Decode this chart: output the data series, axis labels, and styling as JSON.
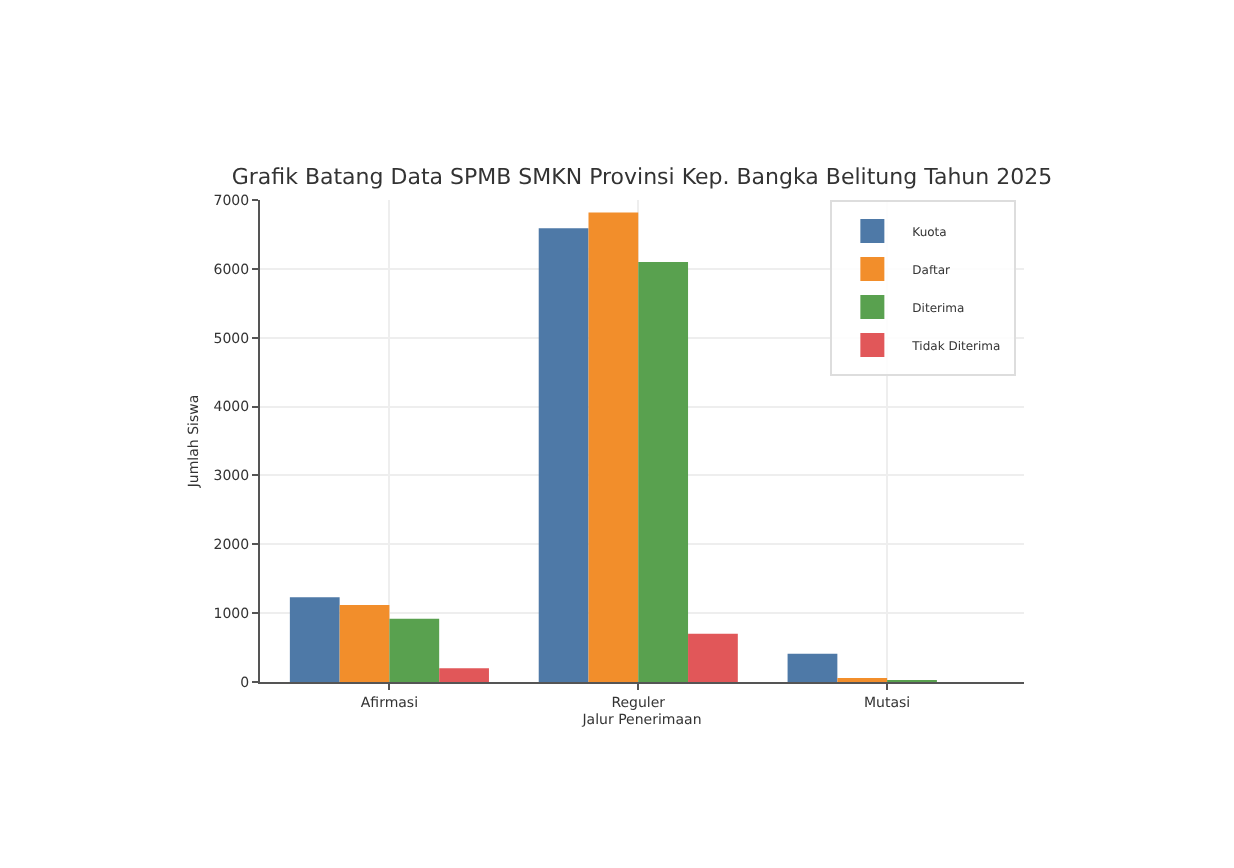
{
  "chart_data": {
    "type": "bar",
    "title": "Grafik Batang Data SPMB SMKN Provinsi Kep. Bangka Belitung Tahun 2025",
    "xlabel": "Jalur Penerimaan",
    "ylabel": "Jumlah Siswa",
    "categories": [
      "Afirmasi",
      "Reguler",
      "Mutasi"
    ],
    "series": [
      {
        "name": "Kuota",
        "color": "#4e79a7",
        "values": [
          1230,
          6590,
          410
        ]
      },
      {
        "name": "Daftar",
        "color": "#f28e2b",
        "values": [
          1120,
          6820,
          30
        ]
      },
      {
        "name": "Diterima",
        "color": "#59a14f",
        "values": [
          920,
          6100,
          20
        ]
      },
      {
        "name": "Tidak Diterima",
        "color": "#e15759",
        "values": [
          200,
          700,
          0
        ]
      }
    ],
    "ylim": [
      0,
      7000
    ],
    "yticks": [
      0,
      1000,
      2000,
      3000,
      4000,
      5000,
      6000,
      7000
    ],
    "grid": true,
    "legend": "top right"
  }
}
